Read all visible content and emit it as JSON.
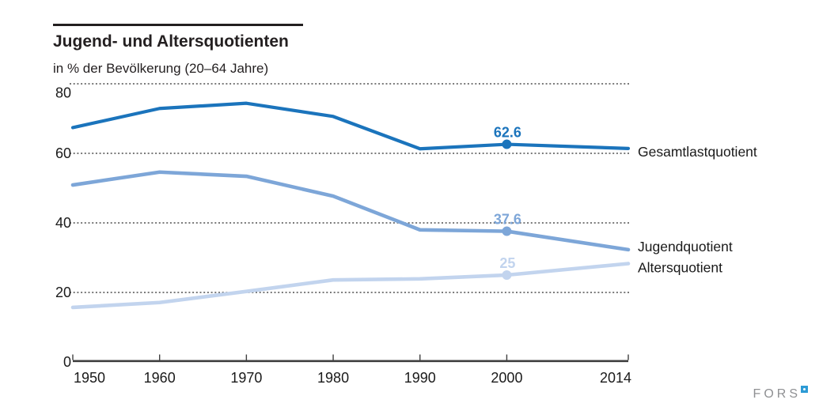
{
  "header": {
    "title": "Jugend- und Altersquotienten",
    "subtitle": "in % der Bevölkerung (20–64 Jahre)"
  },
  "chart_data": {
    "type": "line",
    "title": "Jugend- und Altersquotienten",
    "subtitle": "in % der Bevölkerung (20–64 Jahre)",
    "x": [
      1950,
      1960,
      1970,
      1980,
      1990,
      2000,
      2014
    ],
    "x_tick_labels": [
      "1950",
      "1960",
      "1970",
      "1980",
      "1990",
      "2000",
      "2014"
    ],
    "xlim": [
      1950,
      2014
    ],
    "ylim": [
      0,
      80
    ],
    "yticks": [
      0,
      20,
      40,
      60,
      80
    ],
    "grid": "horizontal-dotted",
    "legend_position": "right-of-line-ends",
    "series": [
      {
        "name": "Gesamtlastquotient",
        "color": "#1b74bc",
        "values": [
          67.4,
          72.9,
          74.4,
          70.6,
          61.3,
          62.6,
          61.4
        ],
        "label_point": {
          "x": 2000,
          "value": 62.6,
          "label": "62.6"
        }
      },
      {
        "name": "Jugendquotient",
        "color": "#7da6d8",
        "values": [
          50.9,
          54.6,
          53.4,
          47.7,
          38.0,
          37.6,
          32.3
        ],
        "label_point": {
          "x": 2000,
          "value": 37.6,
          "label": "37.6"
        }
      },
      {
        "name": "Altersquotient",
        "color": "#c2d4ee",
        "values": [
          15.7,
          17.1,
          20.3,
          23.6,
          23.9,
          25.0,
          28.3
        ],
        "label_point": {
          "x": 2000,
          "value": 25,
          "label": "25"
        }
      }
    ]
  },
  "footer": {
    "logo_text": "FORS"
  },
  "colors": {
    "series_dark_blue": "#1b74bc",
    "series_medium_blue": "#7da6d8",
    "series_light_blue": "#c2d4ee",
    "grid": "#4f4f4f",
    "axis": "#3f3f3f",
    "text": "#1a1a1a",
    "logo_gray": "#8f9093",
    "logo_blue": "#2d9bd5"
  }
}
